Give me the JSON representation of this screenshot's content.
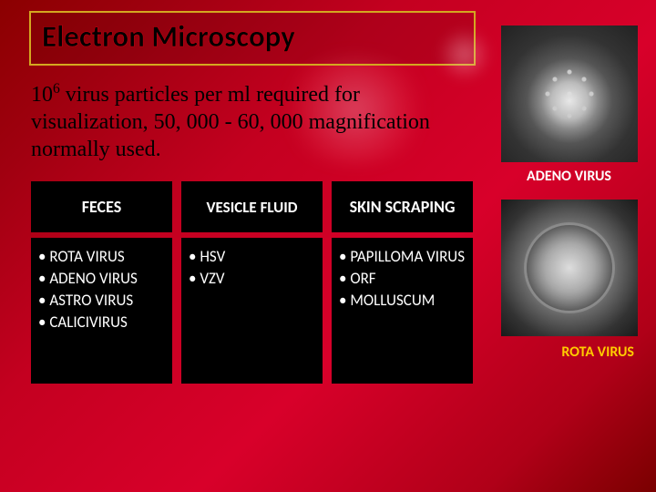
{
  "title": "Electron Microscopy",
  "subtitle_pre": "10",
  "subtitle_sup": "6",
  "subtitle_post": " virus particles per ml required for visualization,  50, 000 - 60, 000 magnification normally used.",
  "columns": [
    {
      "header": "FECES",
      "items": [
        "ROTA  VIRUS",
        "ADENO VIRUS",
        "ASTRO VIRUS",
        "CALICIVIRUS"
      ]
    },
    {
      "header": "VESICLE FLUID",
      "items": [
        "HSV",
        "VZV"
      ]
    },
    {
      "header": "SKIN SCRAPING",
      "items": [
        "PAPILLOMA VIRUS",
        "ORF",
        "MOLLUSCUM"
      ]
    }
  ],
  "images": [
    {
      "label": "ADENO   VIRUS"
    },
    {
      "label": "ROTA  VIRUS"
    }
  ]
}
